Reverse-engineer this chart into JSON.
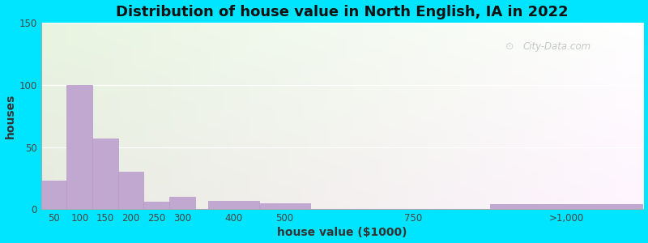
{
  "title": "Distribution of house value in North English, IA in 2022",
  "xlabel": "house value ($1000)",
  "ylabel": "houses",
  "bar_color": "#c0a8d0",
  "bar_edgecolor": "#b898c8",
  "background_outer": "#00e5ff",
  "background_top_left": "#e8f5e0",
  "background_bottom_right": "#d0eef5",
  "xtick_positions": [
    50,
    100,
    150,
    200,
    250,
    300,
    400,
    500,
    750,
    1050
  ],
  "xtick_labels": [
    "50",
    "100",
    "150",
    "200",
    "250",
    "300",
    "400",
    "500",
    "750",
    ">1,000"
  ],
  "bar_lefts": [
    25,
    75,
    125,
    175,
    225,
    275,
    350,
    450,
    625,
    900
  ],
  "bar_widths": [
    50,
    50,
    50,
    50,
    50,
    50,
    100,
    100,
    250,
    300
  ],
  "values": [
    23,
    100,
    57,
    30,
    6,
    10,
    7,
    5,
    0,
    4
  ],
  "ylim": [
    0,
    150
  ],
  "yticks": [
    0,
    50,
    100,
    150
  ],
  "xmin": 25,
  "xmax": 1200,
  "title_fontsize": 13,
  "axis_label_fontsize": 10,
  "tick_fontsize": 8.5,
  "watermark_text": "City-Data.com",
  "watermark_color": "#b0b8b0"
}
